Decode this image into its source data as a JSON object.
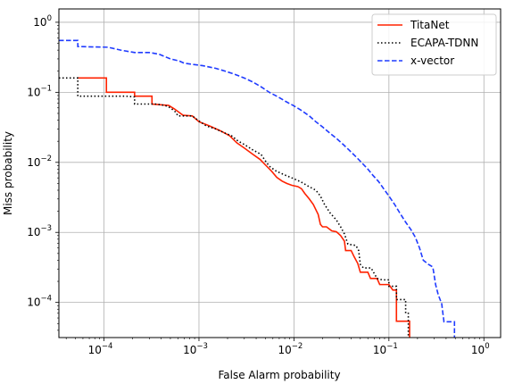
{
  "chart_data": {
    "type": "line",
    "title": "",
    "xlabel": "False Alarm probability",
    "ylabel": "Miss probability",
    "xscale": "log",
    "yscale": "log",
    "xlim": [
      3.35e-05,
      1.5
    ],
    "ylim": [
      3.15e-05,
      1.55
    ],
    "grid": true,
    "legend_position": "top-right",
    "xticks": [
      {
        "base": "10",
        "exp": "−4",
        "value": 0.0001
      },
      {
        "base": "10",
        "exp": "−3",
        "value": 0.001
      },
      {
        "base": "10",
        "exp": "−2",
        "value": 0.01
      },
      {
        "base": "10",
        "exp": "−1",
        "value": 0.1
      },
      {
        "base": "10",
        "exp": "0",
        "value": 1
      }
    ],
    "yticks": [
      {
        "base": "10",
        "exp": "−4",
        "value": 0.0001
      },
      {
        "base": "10",
        "exp": "−3",
        "value": 0.001
      },
      {
        "base": "10",
        "exp": "−2",
        "value": 0.01
      },
      {
        "base": "10",
        "exp": "−1",
        "value": 0.1
      },
      {
        "base": "10",
        "exp": "0",
        "value": 1
      }
    ],
    "series": [
      {
        "name": "TitaNet",
        "color": "#ff2200",
        "dash": "solid",
        "points": [
          [
            5.3e-05,
            0.16
          ],
          [
            0.000106,
            0.16
          ],
          [
            0.000106,
            0.1
          ],
          [
            0.00021,
            0.1
          ],
          [
            0.00021,
            0.088
          ],
          [
            0.00032,
            0.088
          ],
          [
            0.00032,
            0.068
          ],
          [
            0.00048,
            0.065
          ],
          [
            0.00055,
            0.058
          ],
          [
            0.00068,
            0.047
          ],
          [
            0.00085,
            0.046
          ],
          [
            0.001,
            0.038
          ],
          [
            0.0013,
            0.033
          ],
          [
            0.0017,
            0.028
          ],
          [
            0.0021,
            0.024
          ],
          [
            0.0025,
            0.019
          ],
          [
            0.003,
            0.016
          ],
          [
            0.0037,
            0.013
          ],
          [
            0.0044,
            0.011
          ],
          [
            0.005,
            0.0092
          ],
          [
            0.0058,
            0.0075
          ],
          [
            0.0066,
            0.0061
          ],
          [
            0.0075,
            0.0054
          ],
          [
            0.0084,
            0.005
          ],
          [
            0.0095,
            0.0047
          ],
          [
            0.011,
            0.0045
          ],
          [
            0.012,
            0.0042
          ],
          [
            0.013,
            0.0036
          ],
          [
            0.0145,
            0.003
          ],
          [
            0.016,
            0.0025
          ],
          [
            0.018,
            0.0018
          ],
          [
            0.019,
            0.0013
          ],
          [
            0.02,
            0.0012
          ],
          [
            0.022,
            0.0012
          ],
          [
            0.025,
            0.00105
          ],
          [
            0.028,
            0.00102
          ],
          [
            0.031,
            0.0009
          ],
          [
            0.034,
            0.00075
          ],
          [
            0.035,
            0.00055
          ],
          [
            0.04,
            0.00055
          ],
          [
            0.043,
            0.00045
          ],
          [
            0.047,
            0.00036
          ],
          [
            0.05,
            0.00027
          ],
          [
            0.06,
            0.00027
          ],
          [
            0.064,
            0.00022
          ],
          [
            0.075,
            0.00022
          ],
          [
            0.08,
            0.00018
          ],
          [
            0.1,
            0.00018
          ],
          [
            0.11,
            0.00015
          ],
          [
            0.12,
            0.00015
          ],
          [
            0.12,
            5.4e-05
          ],
          [
            0.165,
            5.4e-05
          ],
          [
            0.165,
            3.15e-05
          ]
        ]
      },
      {
        "name": "ECAPA-TDNN",
        "color": "#000000",
        "dash": "dotted",
        "points": [
          [
            3.35e-05,
            0.16
          ],
          [
            5.3e-05,
            0.16
          ],
          [
            5.3e-05,
            0.088
          ],
          [
            0.00017,
            0.088
          ],
          [
            0.00021,
            0.086
          ],
          [
            0.00021,
            0.068
          ],
          [
            0.00035,
            0.068
          ],
          [
            0.00044,
            0.065
          ],
          [
            0.0005,
            0.06
          ],
          [
            0.00057,
            0.052
          ],
          [
            0.0006,
            0.046
          ],
          [
            0.00085,
            0.046
          ],
          [
            0.001,
            0.039
          ],
          [
            0.0012,
            0.033
          ],
          [
            0.0015,
            0.03
          ],
          [
            0.0019,
            0.026
          ],
          [
            0.0022,
            0.024
          ],
          [
            0.0026,
            0.02
          ],
          [
            0.003,
            0.018
          ],
          [
            0.0037,
            0.015
          ],
          [
            0.0045,
            0.013
          ],
          [
            0.005,
            0.0105
          ],
          [
            0.0055,
            0.0088
          ],
          [
            0.0065,
            0.0075
          ],
          [
            0.008,
            0.0066
          ],
          [
            0.0095,
            0.006
          ],
          [
            0.011,
            0.0055
          ],
          [
            0.012,
            0.0052
          ],
          [
            0.014,
            0.0046
          ],
          [
            0.017,
            0.004
          ],
          [
            0.019,
            0.0033
          ],
          [
            0.021,
            0.0025
          ],
          [
            0.024,
            0.0019
          ],
          [
            0.028,
            0.0015
          ],
          [
            0.031,
            0.0012
          ],
          [
            0.034,
            0.00095
          ],
          [
            0.037,
            0.00068
          ],
          [
            0.045,
            0.00065
          ],
          [
            0.048,
            0.00055
          ],
          [
            0.05,
            0.00035
          ],
          [
            0.054,
            0.00031
          ],
          [
            0.065,
            0.00031
          ],
          [
            0.075,
            0.00022
          ],
          [
            0.085,
            0.00021
          ],
          [
            0.1,
            0.00021
          ],
          [
            0.1,
            0.00017
          ],
          [
            0.12,
            0.00017
          ],
          [
            0.12,
            0.00011
          ],
          [
            0.15,
            0.00011
          ],
          [
            0.15,
            7.2e-05
          ],
          [
            0.16,
            7.2e-05
          ],
          [
            0.16,
            3.15e-05
          ]
        ]
      },
      {
        "name": "x-vector",
        "color": "#1f3bff",
        "dash": "dashed",
        "points": [
          [
            3.35e-05,
            0.55
          ],
          [
            5.3e-05,
            0.55
          ],
          [
            5.3e-05,
            0.45
          ],
          [
            0.00011,
            0.44
          ],
          [
            0.00015,
            0.4
          ],
          [
            0.00021,
            0.37
          ],
          [
            0.0003,
            0.37
          ],
          [
            0.00038,
            0.35
          ],
          [
            0.0005,
            0.3
          ],
          [
            0.00062,
            0.28
          ],
          [
            0.0007,
            0.26
          ],
          [
            0.00087,
            0.25
          ],
          [
            0.0011,
            0.24
          ],
          [
            0.0015,
            0.22
          ],
          [
            0.0019,
            0.2
          ],
          [
            0.0024,
            0.18
          ],
          [
            0.003,
            0.16
          ],
          [
            0.0037,
            0.14
          ],
          [
            0.0045,
            0.12
          ],
          [
            0.0055,
            0.1
          ],
          [
            0.0068,
            0.086
          ],
          [
            0.0082,
            0.074
          ],
          [
            0.01,
            0.064
          ],
          [
            0.012,
            0.055
          ],
          [
            0.0145,
            0.046
          ],
          [
            0.017,
            0.038
          ],
          [
            0.02,
            0.032
          ],
          [
            0.024,
            0.026
          ],
          [
            0.028,
            0.022
          ],
          [
            0.033,
            0.018
          ],
          [
            0.038,
            0.015
          ],
          [
            0.045,
            0.012
          ],
          [
            0.052,
            0.0098
          ],
          [
            0.06,
            0.008
          ],
          [
            0.068,
            0.0065
          ],
          [
            0.078,
            0.0053
          ],
          [
            0.088,
            0.0042
          ],
          [
            0.1,
            0.0033
          ],
          [
            0.115,
            0.0025
          ],
          [
            0.13,
            0.0019
          ],
          [
            0.15,
            0.0014
          ],
          [
            0.17,
            0.0011
          ],
          [
            0.19,
            0.00085
          ],
          [
            0.21,
            0.0006
          ],
          [
            0.23,
            0.0004
          ],
          [
            0.26,
            0.00035
          ],
          [
            0.29,
            0.00032
          ],
          [
            0.3,
            0.00024
          ],
          [
            0.31,
            0.00018
          ],
          [
            0.33,
            0.00013
          ],
          [
            0.36,
            9.5e-05
          ],
          [
            0.37,
            7e-05
          ],
          [
            0.38,
            5.3e-05
          ],
          [
            0.45,
            5.3e-05
          ],
          [
            0.49,
            5.3e-05
          ],
          [
            0.49,
            3.15e-05
          ]
        ]
      }
    ]
  }
}
